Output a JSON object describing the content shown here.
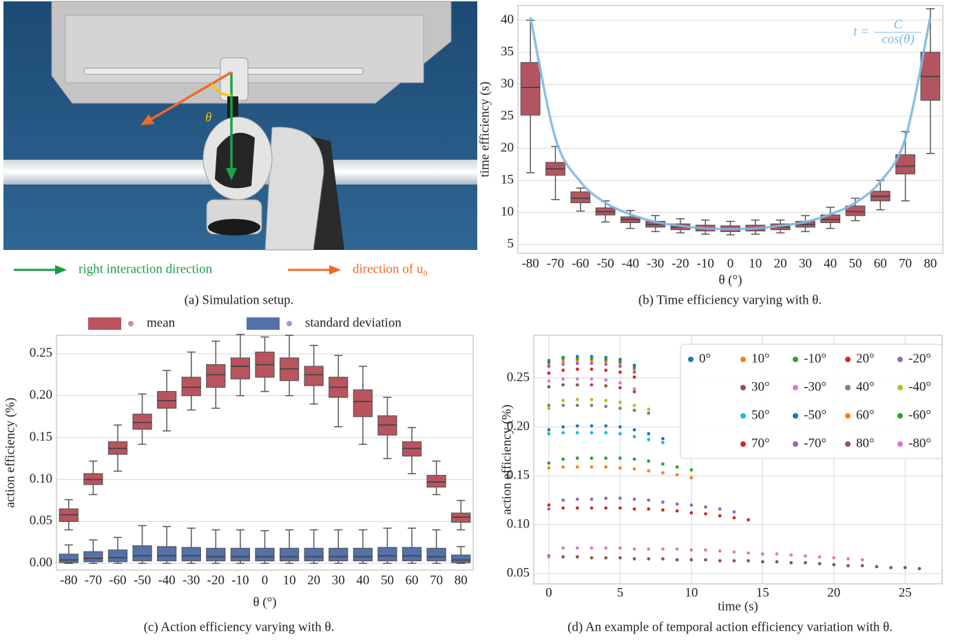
{
  "panel_a": {
    "angle_label": "θ",
    "caption": "(a) Simulation setup.",
    "legend": [
      {
        "label": "right interaction direction",
        "color": "#1a9e45"
      },
      {
        "label": "direction of u₀",
        "color": "#f06a22"
      }
    ]
  },
  "chart_data": [
    {
      "type": "box",
      "caption": "(b) Time efficiency varying with θ.",
      "x_label": "θ (°)",
      "y_label": "time efficiency (s)",
      "categories": [
        "-80",
        "-70",
        "-60",
        "-50",
        "-40",
        "-30",
        "-20",
        "-10",
        "0",
        "10",
        "20",
        "30",
        "40",
        "50",
        "60",
        "70",
        "80"
      ],
      "ylim": [
        3.6,
        42.3
      ],
      "yticks": [
        5,
        10,
        15,
        20,
        25,
        30,
        35,
        40
      ],
      "grid": true,
      "series": [
        {
          "color": "#b35560",
          "values": [
            [
              16.2,
              25.2,
              29.5,
              33.4,
              40
            ],
            [
              12,
              15.8,
              16.8,
              17.8,
              20.3
            ],
            [
              10.2,
              11.5,
              12.2,
              13.2,
              13.8
            ],
            [
              8.5,
              9.6,
              10.1,
              10.7,
              11.8
            ],
            [
              7.5,
              8.4,
              8.9,
              9.3,
              10.3
            ],
            [
              7,
              7.7,
              8.1,
              8.6,
              9.5
            ],
            [
              6.8,
              7.3,
              7.7,
              8.2,
              9
            ],
            [
              6.6,
              7.1,
              7.5,
              8,
              8.8
            ],
            [
              6.5,
              7,
              7.4,
              7.9,
              8.6
            ],
            [
              6.6,
              7.1,
              7.5,
              8,
              8.8
            ],
            [
              6.8,
              7.3,
              7.7,
              8.2,
              8.8
            ],
            [
              7,
              7.7,
              8.1,
              8.6,
              9.5
            ],
            [
              7.5,
              8.4,
              8.9,
              9.6,
              10.8
            ],
            [
              8.7,
              9.5,
              10.1,
              11,
              12.2
            ],
            [
              10.4,
              11.8,
              12.5,
              13.3,
              15
            ],
            [
              11.8,
              16,
              17.2,
              19,
              22.6
            ],
            [
              19.2,
              27.5,
              31.2,
              35,
              41.8
            ]
          ]
        }
      ],
      "curve": {
        "color": "#7cb8e2",
        "values": [
          40.5,
          21.6,
          14.8,
          11.5,
          9.7,
          8.5,
          7.9,
          7.5,
          7.4,
          7.5,
          7.9,
          8.5,
          9.7,
          11.5,
          14.8,
          21.6,
          40.5
        ],
        "annotation": {
          "lhs": "t =",
          "numerator": "C",
          "denominator": "cos(θ)"
        }
      }
    },
    {
      "type": "box",
      "caption": "(c) Action efficiency varying with θ.",
      "x_label": "θ (°)",
      "y_label": "action efficiency (%)",
      "categories": [
        "-80",
        "-70",
        "-60",
        "-50",
        "-40",
        "-30",
        "-20",
        "-10",
        "0",
        "10",
        "20",
        "30",
        "40",
        "50",
        "60",
        "70",
        "80"
      ],
      "ylim": [
        -0.008,
        0.272
      ],
      "yticks": [
        {
          "value": 0,
          "label": "0.00"
        },
        0.05,
        {
          "value": 0.1,
          "label": "0.10"
        },
        0.15,
        {
          "value": 0.2,
          "label": "0.20"
        },
        0.25
      ],
      "grid": true,
      "series": [
        {
          "name": "mean",
          "color": "#b9545e",
          "values": [
            [
              0.04,
              0.05,
              0.058,
              0.065,
              0.076
            ],
            [
              0.082,
              0.094,
              0.1,
              0.107,
              0.122
            ],
            [
              0.11,
              0.13,
              0.137,
              0.145,
              0.165
            ],
            [
              0.142,
              0.16,
              0.168,
              0.178,
              0.202
            ],
            [
              0.158,
              0.185,
              0.194,
              0.205,
              0.23
            ],
            [
              0.183,
              0.2,
              0.21,
              0.222,
              0.252
            ],
            [
              0.185,
              0.21,
              0.225,
              0.237,
              0.265
            ],
            [
              0.2,
              0.22,
              0.235,
              0.245,
              0.273
            ],
            [
              0.205,
              0.222,
              0.237,
              0.252,
              0.27
            ],
            [
              0.2,
              0.218,
              0.232,
              0.245,
              0.272
            ],
            [
              0.19,
              0.212,
              0.225,
              0.235,
              0.26
            ],
            [
              0.163,
              0.198,
              0.21,
              0.222,
              0.248
            ],
            [
              0.142,
              0.175,
              0.193,
              0.207,
              0.235
            ],
            [
              0.125,
              0.153,
              0.165,
              0.176,
              0.198
            ],
            [
              0.107,
              0.128,
              0.137,
              0.145,
              0.162
            ],
            [
              0.082,
              0.091,
              0.097,
              0.105,
              0.122
            ],
            [
              0.04,
              0.049,
              0.055,
              0.06,
              0.075
            ]
          ]
        },
        {
          "name": "standard deviation",
          "color": "#5471ab",
          "values": [
            [
              0,
              0.001,
              0.004,
              0.011,
              0.022
            ],
            [
              0,
              0.002,
              0.006,
              0.014,
              0.028
            ],
            [
              0,
              0.002,
              0.007,
              0.016,
              0.031
            ],
            [
              0,
              0.003,
              0.009,
              0.021,
              0.045
            ],
            [
              0,
              0.003,
              0.009,
              0.02,
              0.044
            ],
            [
              0,
              0.003,
              0.009,
              0.019,
              0.042
            ],
            [
              0,
              0.003,
              0.008,
              0.018,
              0.04
            ],
            [
              0,
              0.003,
              0.008,
              0.018,
              0.04
            ],
            [
              0,
              0.003,
              0.008,
              0.018,
              0.039
            ],
            [
              0,
              0.003,
              0.008,
              0.018,
              0.04
            ],
            [
              0,
              0.003,
              0.008,
              0.018,
              0.04
            ],
            [
              0,
              0.003,
              0.008,
              0.018,
              0.04
            ],
            [
              0,
              0.003,
              0.008,
              0.018,
              0.04
            ],
            [
              0,
              0.003,
              0.009,
              0.019,
              0.042
            ],
            [
              0,
              0.003,
              0.009,
              0.019,
              0.042
            ],
            [
              0,
              0.003,
              0.008,
              0.018,
              0.04
            ],
            [
              0,
              0.001,
              0.004,
              0.01,
              0.02
            ]
          ]
        }
      ]
    },
    {
      "type": "scatter",
      "caption": "(d) An example of temporal action efficiency variation with θ.",
      "x_label": "time (s)",
      "y_label": "action efficiency (%)",
      "xlim": [
        -1.06,
        27.6
      ],
      "xticks": [
        0,
        5,
        10,
        15,
        20,
        25
      ],
      "ylim": [
        0.0394,
        0.2937
      ],
      "yticks": [
        0.05,
        {
          "value": 0.1,
          "label": "0.10"
        },
        0.15,
        {
          "value": 0.2,
          "label": "0.20"
        },
        0.25
      ],
      "grid": true,
      "legend": "upper right",
      "series": [
        {
          "name": "0°",
          "color": "#1f77b4",
          "x": [
            0,
            1,
            2,
            3,
            4,
            5,
            6
          ],
          "values": [
            0.266,
            0.271,
            0.272,
            0.272,
            0.271,
            0.269,
            0.263
          ]
        },
        {
          "name": "10°",
          "color": "#ff7f0e",
          "x": [
            0,
            1,
            2,
            3,
            4,
            5,
            6
          ],
          "values": [
            0.263,
            0.267,
            0.268,
            0.268,
            0.267,
            0.265,
            0.259
          ]
        },
        {
          "name": "-10°",
          "color": "#2ca02c",
          "x": [
            0,
            1,
            2,
            3,
            4,
            5,
            6
          ],
          "values": [
            0.268,
            0.27,
            0.27,
            0.27,
            0.269,
            0.267,
            0.261
          ]
        },
        {
          "name": "20°",
          "color": "#d62728",
          "x": [
            0,
            1,
            2,
            3,
            4,
            5,
            6
          ],
          "values": [
            0.255,
            0.258,
            0.259,
            0.259,
            0.258,
            0.256,
            0.251
          ]
        },
        {
          "name": "-20°",
          "color": "#9467bd",
          "x": [
            0,
            1,
            2,
            3,
            4,
            5,
            6
          ],
          "values": [
            0.262,
            0.264,
            0.265,
            0.265,
            0.264,
            0.262,
            0.256
          ]
        },
        {
          "name": "30°",
          "color": "#8c564b",
          "x": [
            0,
            1,
            2,
            3,
            4,
            5,
            6
          ],
          "values": [
            0.241,
            0.243,
            0.243,
            0.243,
            0.242,
            0.24,
            0.236
          ]
        },
        {
          "name": "-30°",
          "color": "#e377c2",
          "x": [
            0,
            1,
            2,
            3,
            4,
            5,
            6
          ],
          "values": [
            0.247,
            0.249,
            0.249,
            0.249,
            0.248,
            0.245,
            0.239
          ]
        },
        {
          "name": "40°",
          "color": "#7f7f7f",
          "x": [
            0,
            1,
            2,
            3,
            4,
            5,
            6,
            7
          ],
          "values": [
            0.222,
            0.222,
            0.222,
            0.222,
            0.221,
            0.219,
            0.217,
            0.214
          ]
        },
        {
          "name": "-40°",
          "color": "#bcbd22",
          "x": [
            0,
            1,
            2,
            3,
            4,
            5,
            6,
            7
          ],
          "values": [
            0.219,
            0.227,
            0.228,
            0.228,
            0.227,
            0.225,
            0.222,
            0.218
          ]
        },
        {
          "name": "50°",
          "color": "#17becf",
          "x": [
            0,
            1,
            2,
            3,
            4,
            5,
            6,
            7,
            8
          ],
          "values": [
            0.193,
            0.194,
            0.194,
            0.194,
            0.194,
            0.193,
            0.19,
            0.187,
            0.184
          ]
        },
        {
          "name": "-50°",
          "color": "#1f77b4",
          "x": [
            0,
            1,
            2,
            3,
            4,
            5,
            6,
            7,
            8
          ],
          "values": [
            0.197,
            0.2,
            0.201,
            0.201,
            0.201,
            0.2,
            0.197,
            0.193,
            0.188
          ]
        },
        {
          "name": "60°",
          "color": "#ff7f0e",
          "x": [
            0,
            1,
            2,
            3,
            4,
            5,
            6,
            7,
            8,
            9,
            10
          ],
          "values": [
            0.158,
            0.159,
            0.159,
            0.159,
            0.159,
            0.158,
            0.157,
            0.155,
            0.153,
            0.151,
            0.148
          ]
        },
        {
          "name": "-60°",
          "color": "#2ca02c",
          "x": [
            0,
            1,
            2,
            3,
            4,
            5,
            6,
            7,
            8,
            9,
            10
          ],
          "values": [
            0.163,
            0.167,
            0.168,
            0.168,
            0.168,
            0.168,
            0.167,
            0.165,
            0.162,
            0.159,
            0.156
          ]
        },
        {
          "name": "70°",
          "color": "#d62728",
          "x": [
            0,
            1,
            2,
            3,
            4,
            5,
            6,
            7,
            8,
            9,
            10,
            11,
            12,
            13,
            14
          ],
          "values": [
            0.12,
            0.117,
            0.117,
            0.117,
            0.117,
            0.117,
            0.116,
            0.116,
            0.115,
            0.114,
            0.112,
            0.111,
            0.109,
            0.107,
            0.105
          ]
        },
        {
          "name": "-70°",
          "color": "#9467bd",
          "x": [
            0,
            1,
            2,
            3,
            4,
            5,
            6,
            7,
            8,
            9,
            10,
            11,
            12,
            13
          ],
          "values": [
            0.116,
            0.125,
            0.126,
            0.126,
            0.127,
            0.127,
            0.126,
            0.125,
            0.123,
            0.121,
            0.12,
            0.118,
            0.116,
            0.113
          ]
        },
        {
          "name": "80°",
          "color": "#8c564b",
          "x": [
            0,
            1,
            2,
            3,
            4,
            5,
            6,
            7,
            8,
            9,
            10,
            11,
            12,
            13,
            14,
            15,
            16,
            17,
            18,
            19,
            20,
            21,
            22,
            23,
            24,
            25,
            26
          ],
          "values": [
            0.068,
            0.067,
            0.067,
            0.066,
            0.066,
            0.066,
            0.065,
            0.065,
            0.065,
            0.064,
            0.064,
            0.064,
            0.063,
            0.063,
            0.063,
            0.062,
            0.062,
            0.061,
            0.061,
            0.06,
            0.059,
            0.058,
            0.058,
            0.057,
            0.056,
            0.056,
            0.055
          ]
        },
        {
          "name": "-80°",
          "color": "#e377c2",
          "x": [
            0,
            1,
            2,
            3,
            4,
            5,
            6,
            7,
            8,
            9,
            10,
            11,
            12,
            13,
            14,
            15,
            16,
            17,
            18,
            19,
            20,
            21,
            22
          ],
          "values": [
            0.067,
            0.076,
            0.076,
            0.076,
            0.076,
            0.076,
            0.075,
            0.075,
            0.075,
            0.075,
            0.074,
            0.074,
            0.073,
            0.072,
            0.071,
            0.07,
            0.07,
            0.069,
            0.068,
            0.067,
            0.066,
            0.065,
            0.064
          ]
        }
      ]
    }
  ]
}
